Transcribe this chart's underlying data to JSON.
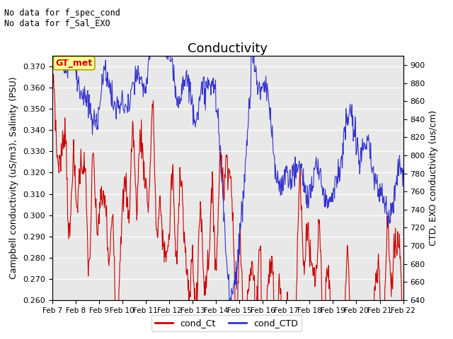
{
  "title": "Conductivity",
  "ylabel_left": "Campbell conductivity (uS/m3), Salinity (PSU)",
  "ylabel_right": "CTD, EXO conductivity (us/cm)",
  "ylim_left": [
    0.26,
    0.375
  ],
  "ylim_right": [
    640,
    910
  ],
  "yticks_left": [
    0.26,
    0.27,
    0.28,
    0.29,
    0.3,
    0.31,
    0.32,
    0.33,
    0.34,
    0.35,
    0.36,
    0.37
  ],
  "yticks_right": [
    640,
    660,
    680,
    700,
    720,
    740,
    760,
    780,
    800,
    820,
    840,
    860,
    880,
    900
  ],
  "xtick_labels": [
    "Feb 7",
    "Feb 8",
    "Feb 9",
    "Feb 10",
    "Feb 11",
    "Feb 12",
    "Feb 13",
    "Feb 14",
    "Feb 15",
    "Feb 16",
    "Feb 17",
    "Feb 18",
    "Feb 19",
    "Feb 20",
    "Feb 21",
    "Feb 22"
  ],
  "color_red": "#cc0000",
  "color_blue": "#3333cc",
  "legend_labels": [
    "cond_Ct",
    "cond_CTD"
  ],
  "annotation_lines": [
    "No data for f_spec_cond",
    "No data for f_Sal_EXO"
  ],
  "gt_met_label": "GT_met",
  "background_color": "#e8e8e8",
  "grid_color": "#ffffff",
  "title_fontsize": 13,
  "axis_fontsize": 9,
  "tick_fontsize": 8,
  "annotation_fontsize": 8.5
}
